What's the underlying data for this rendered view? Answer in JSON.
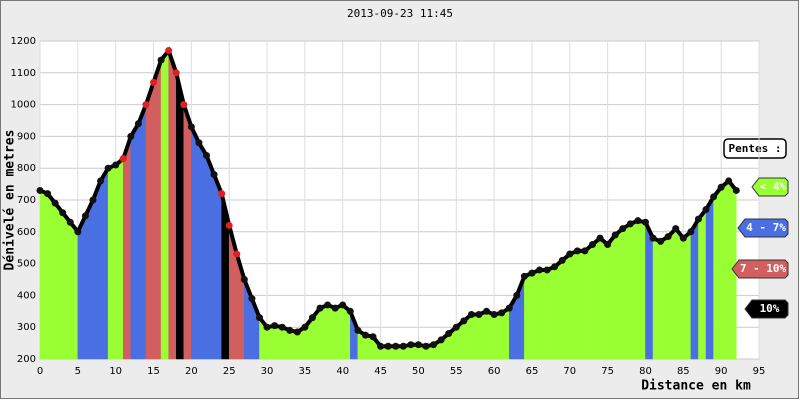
{
  "chart_data": {
    "type": "profile",
    "title": "2013-09-23 11:45",
    "x_label": "Distance en km",
    "y_label": "Dénivelé en metres",
    "legend_title": "Pentes :",
    "classes": [
      {
        "name": "< 4%",
        "min": 0,
        "color": "#99ff33"
      },
      {
        "name": "4 - 7%",
        "min": 4,
        "color": "#4a6fe3"
      },
      {
        "name": "7 - 10%",
        "min": 7,
        "color": "#d25f5f"
      },
      {
        "name": "10%",
        "min": 10,
        "color": "#000000"
      }
    ],
    "x": [
      0,
      1,
      2,
      3,
      4,
      5,
      6,
      7,
      8,
      9,
      10,
      11,
      12,
      13,
      14,
      15,
      16,
      17,
      18,
      19,
      20,
      21,
      22,
      23,
      24,
      25,
      26,
      27,
      28,
      29,
      30,
      31,
      32,
      33,
      34,
      35,
      36,
      37,
      38,
      39,
      40,
      41,
      42,
      43,
      44,
      45,
      46,
      47,
      48,
      49,
      50,
      51,
      52,
      53,
      54,
      55,
      56,
      57,
      58,
      59,
      60,
      61,
      62,
      63,
      64,
      65,
      66,
      67,
      68,
      69,
      70,
      71,
      72,
      73,
      74,
      75,
      76,
      77,
      78,
      79,
      80,
      81,
      82,
      83,
      84,
      85,
      86,
      87,
      88,
      89,
      90,
      91,
      92
    ],
    "values": [
      730,
      720,
      690,
      660,
      630,
      600,
      650,
      700,
      760,
      800,
      810,
      830,
      900,
      940,
      1000,
      1070,
      1140,
      1170,
      1100,
      1000,
      930,
      880,
      840,
      780,
      720,
      620,
      530,
      450,
      390,
      330,
      300,
      305,
      300,
      290,
      285,
      300,
      330,
      360,
      370,
      360,
      370,
      350,
      290,
      275,
      270,
      240,
      240,
      240,
      240,
      245,
      245,
      240,
      245,
      260,
      280,
      300,
      320,
      340,
      340,
      350,
      340,
      345,
      360,
      400,
      460,
      470,
      480,
      480,
      490,
      510,
      530,
      540,
      540,
      560,
      580,
      560,
      590,
      610,
      625,
      635,
      630,
      580,
      570,
      585,
      610,
      580,
      600,
      640,
      670,
      710,
      740,
      760,
      730
    ],
    "line_color": "#000000",
    "xlim": [
      0,
      95
    ],
    "ylim": [
      200,
      1200
    ],
    "xticks": [
      0,
      5,
      10,
      15,
      20,
      25,
      30,
      35,
      40,
      45,
      50,
      55,
      60,
      65,
      70,
      75,
      80,
      85,
      90,
      95
    ],
    "yticks": [
      200,
      300,
      400,
      500,
      600,
      700,
      800,
      900,
      1000,
      1100,
      1200
    ],
    "grid": true
  }
}
